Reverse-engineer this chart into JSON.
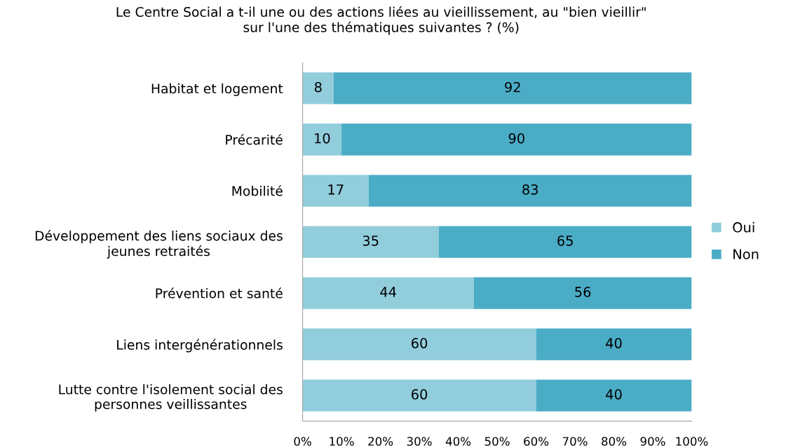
{
  "chart_data": {
    "type": "bar",
    "orientation": "horizontal",
    "stacked": true,
    "title": "Le Centre Social a t-il une ou des actions liées au vieillissement, au \"bien vieillir\"\nsur l'une des thématiques suivantes ? (%)",
    "categories": [
      "Habitat et logement",
      "Précarité",
      "Mobilité",
      "Développement des liens sociaux des\njeunes retraités",
      "Prévention et santé",
      "Liens intergénérationnels",
      "Lutte contre l'isolement social des\npersonnes veillissantes"
    ],
    "series": [
      {
        "name": "Oui",
        "color": "#92cddc",
        "values": [
          8,
          10,
          17,
          35,
          44,
          60,
          60
        ]
      },
      {
        "name": "Non",
        "color": "#4bacc6",
        "values": [
          92,
          90,
          83,
          65,
          56,
          40,
          40
        ]
      }
    ],
    "xlim": [
      0,
      100
    ],
    "xticks": [
      {
        "value": 0,
        "label": "0%"
      },
      {
        "value": 10,
        "label": "10%"
      },
      {
        "value": 20,
        "label": "20%"
      },
      {
        "value": 30,
        "label": "30%"
      },
      {
        "value": 40,
        "label": "40%"
      },
      {
        "value": 50,
        "label": "50%"
      },
      {
        "value": 60,
        "label": "60%"
      },
      {
        "value": 70,
        "label": "70%"
      },
      {
        "value": 80,
        "label": "80%"
      },
      {
        "value": 90,
        "label": "90%"
      },
      {
        "value": 100,
        "label": "100%"
      }
    ],
    "data_labels": true,
    "legend": "right",
    "grid": false
  }
}
